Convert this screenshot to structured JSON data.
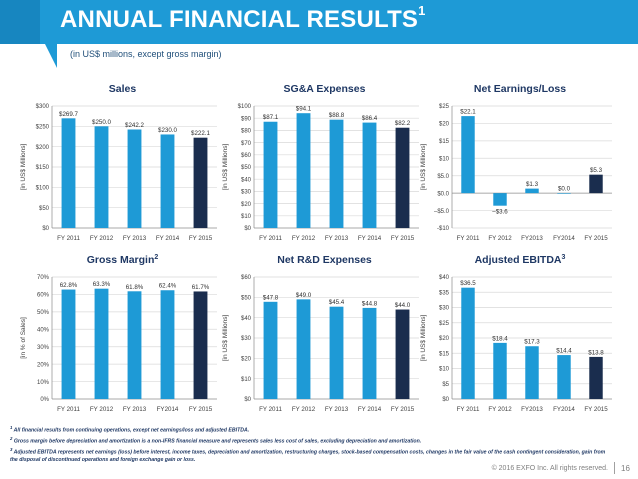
{
  "header": {
    "title": "ANNUAL FINANCIAL RESULTS",
    "title_sup": "1",
    "subtitle": "(in US$ millions, except gross margin)"
  },
  "colors": {
    "banner": "#1e9ad6",
    "bar": "#1e9ad6",
    "bar_last": "#1a2d4e",
    "grid": "#d9d9d9",
    "title_text": "#1f3864",
    "label_text": "#404040"
  },
  "chart_data": [
    {
      "type": "bar",
      "title": "Sales",
      "title_sup": "",
      "ylabel": "[in US$ Millions]",
      "categories": [
        "FY 2011",
        "FY 2012",
        "FY 2013",
        "FY 2014",
        "FY 2015"
      ],
      "values": [
        269.7,
        250.0,
        242.2,
        230.0,
        222.1
      ],
      "value_labels": [
        "$269.7",
        "$250.0",
        "$242.2",
        "$230.0",
        "$222.1"
      ],
      "ylim": [
        0,
        300
      ],
      "yticks": [
        0,
        50,
        100,
        150,
        200,
        250,
        300
      ],
      "ytick_labels": [
        "$0",
        "$50",
        "$100",
        "$150",
        "$200",
        "$250",
        "$300"
      ]
    },
    {
      "type": "bar",
      "title": "SG&A Expenses",
      "title_sup": "",
      "ylabel": "[in US$ Millions]",
      "categories": [
        "FY 2011",
        "FY 2012",
        "FY 2013",
        "FY 2014",
        "FY 2015"
      ],
      "values": [
        87.1,
        94.1,
        88.8,
        86.4,
        82.2
      ],
      "value_labels": [
        "$87.1",
        "$94.1",
        "$88.8",
        "$86.4",
        "$82.2"
      ],
      "ylim": [
        0,
        100
      ],
      "yticks": [
        0,
        10,
        20,
        30,
        40,
        50,
        60,
        70,
        80,
        90,
        100
      ],
      "ytick_labels": [
        "$0",
        "$10",
        "$20",
        "$30",
        "$40",
        "$50",
        "$60",
        "$70",
        "$80",
        "$90",
        "$100"
      ]
    },
    {
      "type": "bar",
      "title": "Net Earnings/Loss",
      "title_sup": "",
      "ylabel": "[in US$ Millions]",
      "categories": [
        "FY 2011",
        "FY 2012",
        "FY2013",
        "FY2014",
        "FY 2015"
      ],
      "values": [
        22.1,
        -3.6,
        1.3,
        0.0,
        5.3
      ],
      "value_labels": [
        "$22.1",
        "–$3.6",
        "$1.3",
        "$0.0",
        "$5.3"
      ],
      "ylim": [
        -10,
        25
      ],
      "yticks": [
        -10,
        -5,
        0,
        5,
        10,
        15,
        20,
        25
      ],
      "ytick_labels": [
        "-$10",
        "–$5.0",
        "$0.0",
        "$5.0",
        "$10",
        "$15",
        "$20",
        "$25"
      ]
    },
    {
      "type": "bar",
      "title": "Gross Margin",
      "title_sup": "2",
      "ylabel": "[in % of Sales]",
      "categories": [
        "FY 2011",
        "FY 2012",
        "FY 2013",
        "FY2014",
        "FY 2015"
      ],
      "values": [
        62.8,
        63.3,
        61.8,
        62.4,
        61.7
      ],
      "value_labels": [
        "62.8%",
        "63.3%",
        "61.8%",
        "62.4%",
        "61.7%"
      ],
      "ylim": [
        0,
        70
      ],
      "yticks": [
        0,
        10,
        20,
        30,
        40,
        50,
        60,
        70
      ],
      "ytick_labels": [
        "0%",
        "10%",
        "20%",
        "30%",
        "40%",
        "50%",
        "60%",
        "70%"
      ]
    },
    {
      "type": "bar",
      "title": "Net R&D Expenses",
      "title_sup": "",
      "ylabel": "[in US$ Millions]",
      "categories": [
        "FY 2011",
        "FY 2012",
        "FY 2013",
        "FY 2014",
        "FY 2015"
      ],
      "values": [
        47.8,
        49.0,
        45.4,
        44.8,
        44.0
      ],
      "value_labels": [
        "$47.8",
        "$49.0",
        "$45.4",
        "$44.8",
        "$44.0"
      ],
      "ylim": [
        0,
        60
      ],
      "yticks": [
        0,
        10,
        20,
        30,
        40,
        50,
        60
      ],
      "ytick_labels": [
        "$0",
        "$10",
        "$20",
        "$30",
        "$40",
        "$50",
        "$60"
      ]
    },
    {
      "type": "bar",
      "title": "Adjusted EBITDA",
      "title_sup": "3",
      "ylabel": "[in US$ Millions]",
      "categories": [
        "FY 2011",
        "FY 2012",
        "FY2013",
        "FY2014",
        "FY 2015"
      ],
      "values": [
        36.5,
        18.4,
        17.3,
        14.4,
        13.8
      ],
      "value_labels": [
        "$36.5",
        "$18.4",
        "$17.3",
        "$14.4",
        "$13.8"
      ],
      "ylim": [
        0,
        40
      ],
      "yticks": [
        0,
        5,
        10,
        15,
        20,
        25,
        30,
        35,
        40
      ],
      "ytick_labels": [
        "$0",
        "$5",
        "$10",
        "$15",
        "$20",
        "$25",
        "$30",
        "$35",
        "$40"
      ]
    }
  ],
  "footnotes": [
    {
      "num": "1",
      "text": "All financial results from continuing operations, except net earnings/loss and adjusted EBITDA."
    },
    {
      "num": "2",
      "text": "Gross margin before depreciation and amortization is a non-IFRS financial measure and represents sales less cost of sales, excluding depreciation and amortization."
    },
    {
      "num": "3",
      "text": "Adjusted EBITDA represents net earnings (loss) before interest, income taxes, depreciation and amortization, restructuring charges, stock-based compensation costs, changes in the fair value of the cash contingent consideration, gain from the disposal of discontinued operations and foreign exchange gain or loss."
    }
  ],
  "footer": {
    "copyright": "© 2016 EXFO Inc. All rights reserved.",
    "page": "16"
  }
}
